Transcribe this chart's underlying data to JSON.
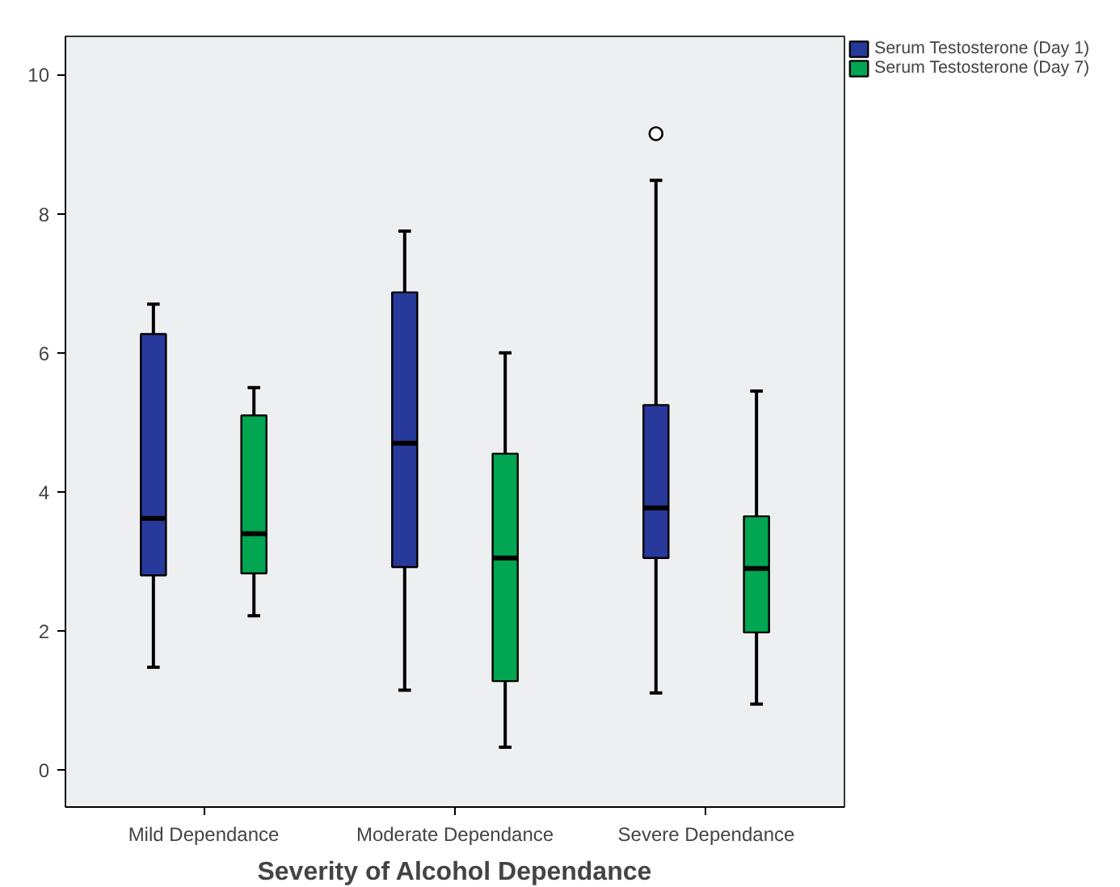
{
  "chart_data": {
    "type": "box",
    "xlabel": "Severity of Alcohol Dependance",
    "categories": [
      "Mild Dependance",
      "Moderate Dependance",
      "Severe Dependance"
    ],
    "ylim": [
      -0.53,
      10.55
    ],
    "yticks": [
      0,
      2,
      4,
      6,
      8,
      10
    ],
    "grid": false,
    "legend": "top right",
    "series": [
      {
        "name": "Serum Testosterone (Day 1)",
        "color": "#27399a",
        "boxes": [
          {
            "low": 1.48,
            "q1": 2.8,
            "median": 3.62,
            "q3": 6.27,
            "high": 6.7
          },
          {
            "low": 1.15,
            "q1": 2.92,
            "median": 4.7,
            "q3": 6.87,
            "high": 7.75
          },
          {
            "low": 1.11,
            "q1": 3.05,
            "median": 3.77,
            "q3": 5.25,
            "high": 8.48,
            "outliers": [
              9.15
            ]
          }
        ]
      },
      {
        "name": "Serum Testosterone (Day 7)",
        "color": "#00a651",
        "boxes": [
          {
            "low": 2.22,
            "q1": 2.83,
            "median": 3.4,
            "q3": 5.1,
            "high": 5.5
          },
          {
            "low": 0.33,
            "q1": 1.28,
            "median": 3.05,
            "q3": 4.55,
            "high": 6.0
          },
          {
            "low": 0.95,
            "q1": 1.98,
            "median": 2.9,
            "q3": 3.65,
            "high": 5.45
          }
        ]
      }
    ]
  }
}
